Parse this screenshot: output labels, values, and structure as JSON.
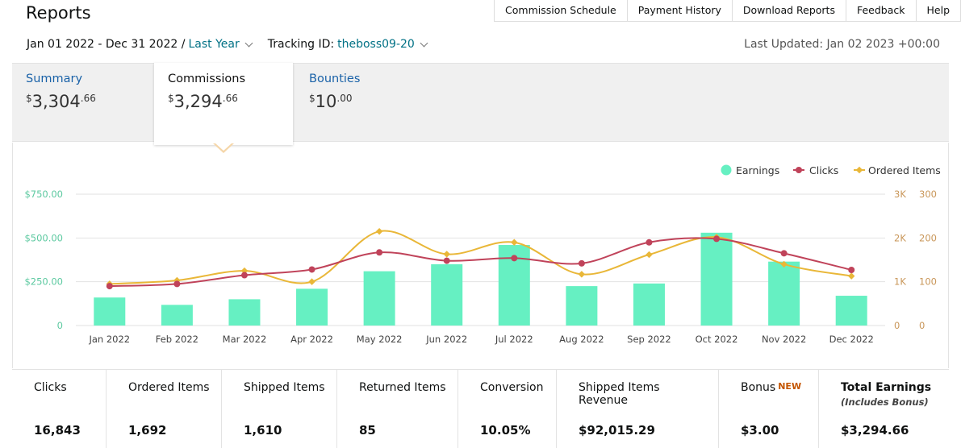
{
  "page_title": "Reports",
  "top_links": [
    "Commission Schedule",
    "Payment History",
    "Download Reports",
    "Feedback",
    "Help"
  ],
  "filters": {
    "date_range": "Jan 01 2022 - Dec 31 2022 /",
    "date_preset": "Last Year",
    "tracking_label": "Tracking ID:",
    "tracking_id": "theboss09-20"
  },
  "last_updated": "Last Updated: Jan 02 2023 +00:00",
  "tabs": [
    {
      "label": "Summary",
      "currency": "$",
      "whole": "3,304",
      "cents": ".66",
      "active": false
    },
    {
      "label": "Commissions",
      "currency": "$",
      "whole": "3,294",
      "cents": ".66",
      "active": true
    },
    {
      "label": "Bounties",
      "currency": "$",
      "whole": "10",
      "cents": ".00",
      "active": false
    }
  ],
  "colors": {
    "earnings": "#66f0c2",
    "clicks": "#c0435a",
    "ordered": "#e9b738",
    "link": "#007185",
    "axis_left": "#5cc9a0",
    "axis_right": "#c9975a"
  },
  "chart_data": {
    "type": "bar+line",
    "categories": [
      "Jan 2022",
      "Feb 2022",
      "Mar 2022",
      "Apr 2022",
      "May 2022",
      "Jun 2022",
      "Jul 2022",
      "Aug 2022",
      "Sep 2022",
      "Oct 2022",
      "Nov 2022",
      "Dec 2022"
    ],
    "legend": [
      "Earnings",
      "Clicks",
      "Ordered Items"
    ],
    "legend_position": "top-right",
    "left_axis": {
      "ticks": [
        "0",
        "$250.00",
        "$500.00",
        "$750.00"
      ],
      "ylim": [
        0,
        750
      ]
    },
    "right_axis_clicks": {
      "ticks": [
        "0",
        "1K",
        "2K",
        "3K"
      ],
      "ylim": [
        0,
        3000
      ]
    },
    "right_axis_ordered": {
      "ticks": [
        "0",
        "100",
        "200",
        "300"
      ],
      "ylim": [
        0,
        300
      ]
    },
    "grid": true,
    "series": [
      {
        "name": "Earnings",
        "type": "bar",
        "axis": "left",
        "values": [
          160,
          118,
          150,
          210,
          310,
          350,
          460,
          225,
          240,
          530,
          365,
          170
        ]
      },
      {
        "name": "Clicks",
        "type": "line",
        "axis": "right_clicks",
        "values": [
          900,
          950,
          1150,
          1280,
          1670,
          1480,
          1540,
          1420,
          1900,
          1980,
          1650,
          1270
        ]
      },
      {
        "name": "Ordered Items",
        "type": "line",
        "axis": "right_ordered",
        "values": [
          95,
          103,
          125,
          100,
          215,
          163,
          190,
          117,
          162,
          202,
          140,
          113
        ]
      }
    ]
  },
  "stats": [
    {
      "label": "Clicks",
      "value": "16,843",
      "width": 117
    },
    {
      "label": "Ordered Items",
      "value": "1,692",
      "width": 143
    },
    {
      "label": "Shipped Items",
      "value": "1,610",
      "width": 143
    },
    {
      "label": "Returned Items",
      "value": "85",
      "width": 150
    },
    {
      "label": "Conversion",
      "value": "10.05%",
      "width": 122
    },
    {
      "label": "Shipped Items Revenue",
      "value": "$92,015.29",
      "width": 201
    },
    {
      "label": "Bonus",
      "badge": "NEW",
      "value": "$3.00",
      "width": 124
    },
    {
      "label": "Total Earnings",
      "sub": "(Includes Bonus)",
      "value": "$3,294.66",
      "width": 161
    }
  ]
}
